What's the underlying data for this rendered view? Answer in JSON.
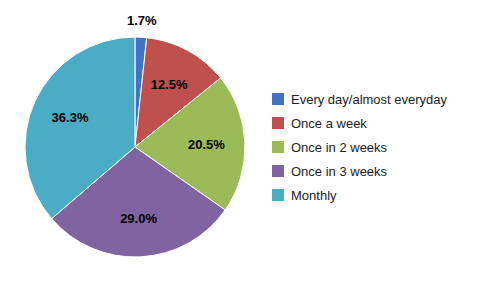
{
  "chart_data": {
    "type": "pie",
    "categories": [
      "Every day/almost everyday",
      "Once a week",
      "Once in 2 weeks",
      "Once in 3 weeks",
      "Monthly"
    ],
    "values": [
      1.7,
      12.5,
      20.5,
      29.0,
      36.3
    ],
    "value_labels": [
      "1.7%",
      "12.5%",
      "20.5%",
      "29.0%",
      "36.3%"
    ],
    "colors": [
      "#4472C4",
      "#C0504D",
      "#9BBB59",
      "#8064A2",
      "#4BACC6"
    ],
    "data_labels": true,
    "legend": "right"
  }
}
